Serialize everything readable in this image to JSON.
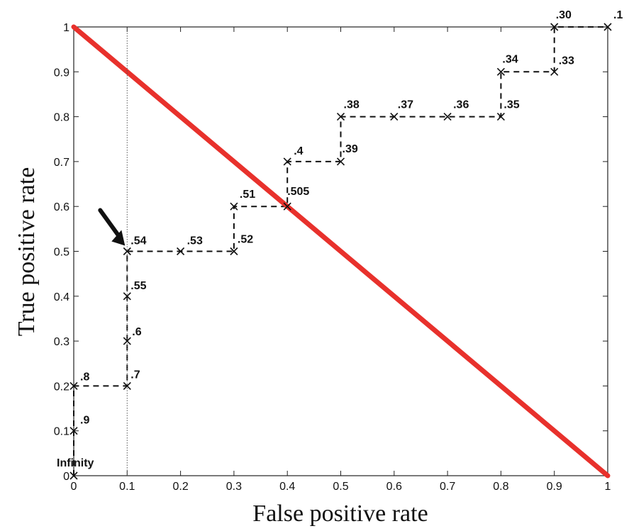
{
  "chart_data": {
    "type": "line",
    "title": "",
    "xlabel": "False positive rate",
    "ylabel": "True positive rate",
    "xlim": [
      0,
      1
    ],
    "ylim": [
      0,
      1
    ],
    "x_ticks": [
      "0",
      "0.1",
      "0.2",
      "0.3",
      "0.4",
      "0.5",
      "0.6",
      "0.7",
      "0.8",
      "0.9",
      "1"
    ],
    "y_ticks": [
      "0",
      "0.1",
      "0.2",
      "0.3",
      "0.4",
      "0.5",
      "0.6",
      "0.7",
      "0.8",
      "0.9",
      "1"
    ],
    "grid": false,
    "series": [
      {
        "style": "dashed-step",
        "color": "#111111",
        "marker": "x",
        "points": [
          {
            "x": 0,
            "y": 0,
            "label": "Infinity"
          },
          {
            "x": 0,
            "y": 0.1,
            "label": ".9"
          },
          {
            "x": 0,
            "y": 0.2,
            "label": ".8"
          },
          {
            "x": 0.1,
            "y": 0.2,
            "label": ".7"
          },
          {
            "x": 0.1,
            "y": 0.3,
            "label": ".6"
          },
          {
            "x": 0.1,
            "y": 0.4,
            "label": ".55"
          },
          {
            "x": 0.1,
            "y": 0.5,
            "label": ".54"
          },
          {
            "x": 0.2,
            "y": 0.5,
            "label": ".53"
          },
          {
            "x": 0.3,
            "y": 0.5,
            "label": ".52"
          },
          {
            "x": 0.3,
            "y": 0.6,
            "label": ".51"
          },
          {
            "x": 0.4,
            "y": 0.6,
            "label": ".505"
          },
          {
            "x": 0.4,
            "y": 0.7,
            "label": ".4"
          },
          {
            "x": 0.5,
            "y": 0.7,
            "label": ".39"
          },
          {
            "x": 0.5,
            "y": 0.8,
            "label": ".38"
          },
          {
            "x": 0.6,
            "y": 0.8,
            "label": ".37"
          },
          {
            "x": 0.7,
            "y": 0.8,
            "label": ".36"
          },
          {
            "x": 0.8,
            "y": 0.8,
            "label": ".35"
          },
          {
            "x": 0.8,
            "y": 0.9,
            "label": ".34"
          },
          {
            "x": 0.9,
            "y": 0.9,
            "label": ".33"
          },
          {
            "x": 0.9,
            "y": 1.0,
            "label": ".30"
          },
          {
            "x": 1.0,
            "y": 1.0,
            "label": ".1"
          }
        ]
      },
      {
        "style": "solid",
        "color": "#e8312c",
        "points": [
          {
            "x": 0,
            "y": 1
          },
          {
            "x": 1,
            "y": 0
          }
        ]
      },
      {
        "style": "dotted-vertical",
        "color": "#555555",
        "points": [
          {
            "x": 0.1,
            "y": 0
          },
          {
            "x": 0.1,
            "y": 1
          }
        ]
      }
    ],
    "annotations": [
      {
        "type": "arrow",
        "color": "#111111",
        "points_to": {
          "x": 0.1,
          "y": 0.5
        }
      }
    ]
  }
}
